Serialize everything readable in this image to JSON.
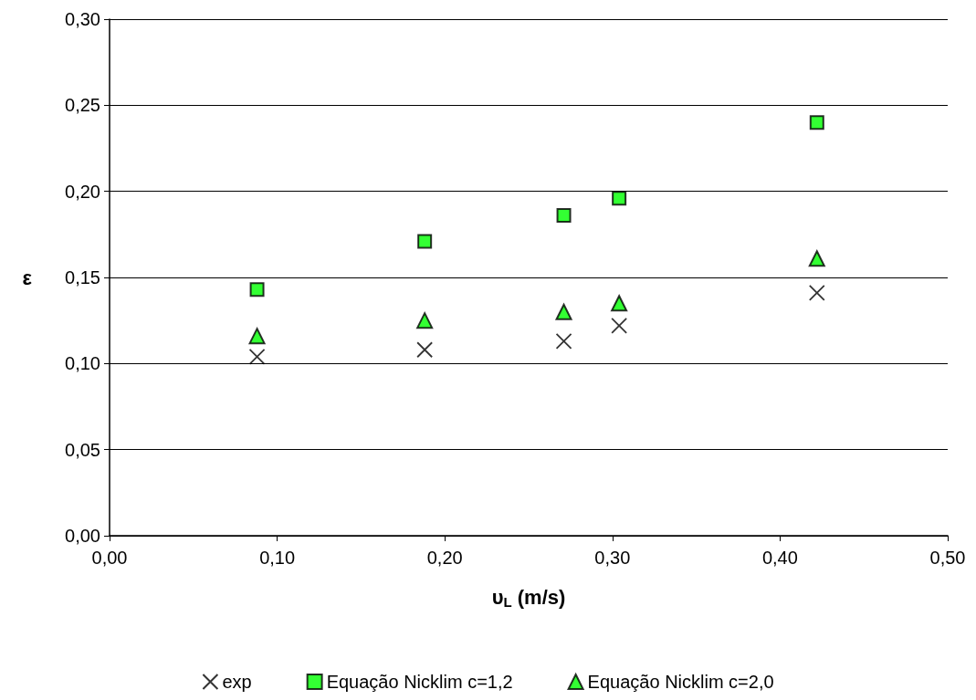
{
  "chart_data": {
    "type": "scatter",
    "xlabel": "υ$_{L}$ (m/s)",
    "ylabel": "ε",
    "xlim": [
      0,
      0.5
    ],
    "xticks": [
      {
        "value": 0,
        "label": "0,00"
      },
      {
        "value": 0.1,
        "label": "0,10"
      },
      {
        "value": 0.2,
        "label": "0,20"
      },
      {
        "value": 0.3,
        "label": "0,30"
      },
      {
        "value": 0.4,
        "label": "0,40"
      },
      {
        "value": 0.5,
        "label": "0,50"
      }
    ],
    "ylim": [
      0,
      0.3
    ],
    "yticks": [
      {
        "value": 0,
        "label": "0,00"
      },
      {
        "value": 0.05,
        "label": "0,05"
      },
      {
        "value": 0.1,
        "label": "0,10"
      },
      {
        "value": 0.15,
        "label": "0,15"
      },
      {
        "value": 0.2,
        "label": "0,20"
      },
      {
        "value": 0.25,
        "label": "0,25"
      },
      {
        "value": 0.3,
        "label": "0,30"
      }
    ],
    "x": [
      0.088,
      0.188,
      0.271,
      0.304,
      0.422
    ],
    "series": [
      {
        "name": "exp",
        "color": "#000000",
        "marker": "cross",
        "values": [
          0.104,
          0.108,
          0.113,
          0.122,
          0.141
        ]
      },
      {
        "name": "Equação Nicklim c=1,2",
        "color": "#00ff00",
        "marker": "square",
        "values": [
          0.143,
          0.171,
          0.186,
          0.196,
          0.24
        ]
      },
      {
        "name": "Equação Nicklim c=2,0",
        "color": "#00ff00",
        "marker": "triangle",
        "values": [
          0.116,
          0.125,
          0.13,
          0.135,
          0.161
        ]
      }
    ],
    "grid": "y",
    "legend": "bottom"
  }
}
